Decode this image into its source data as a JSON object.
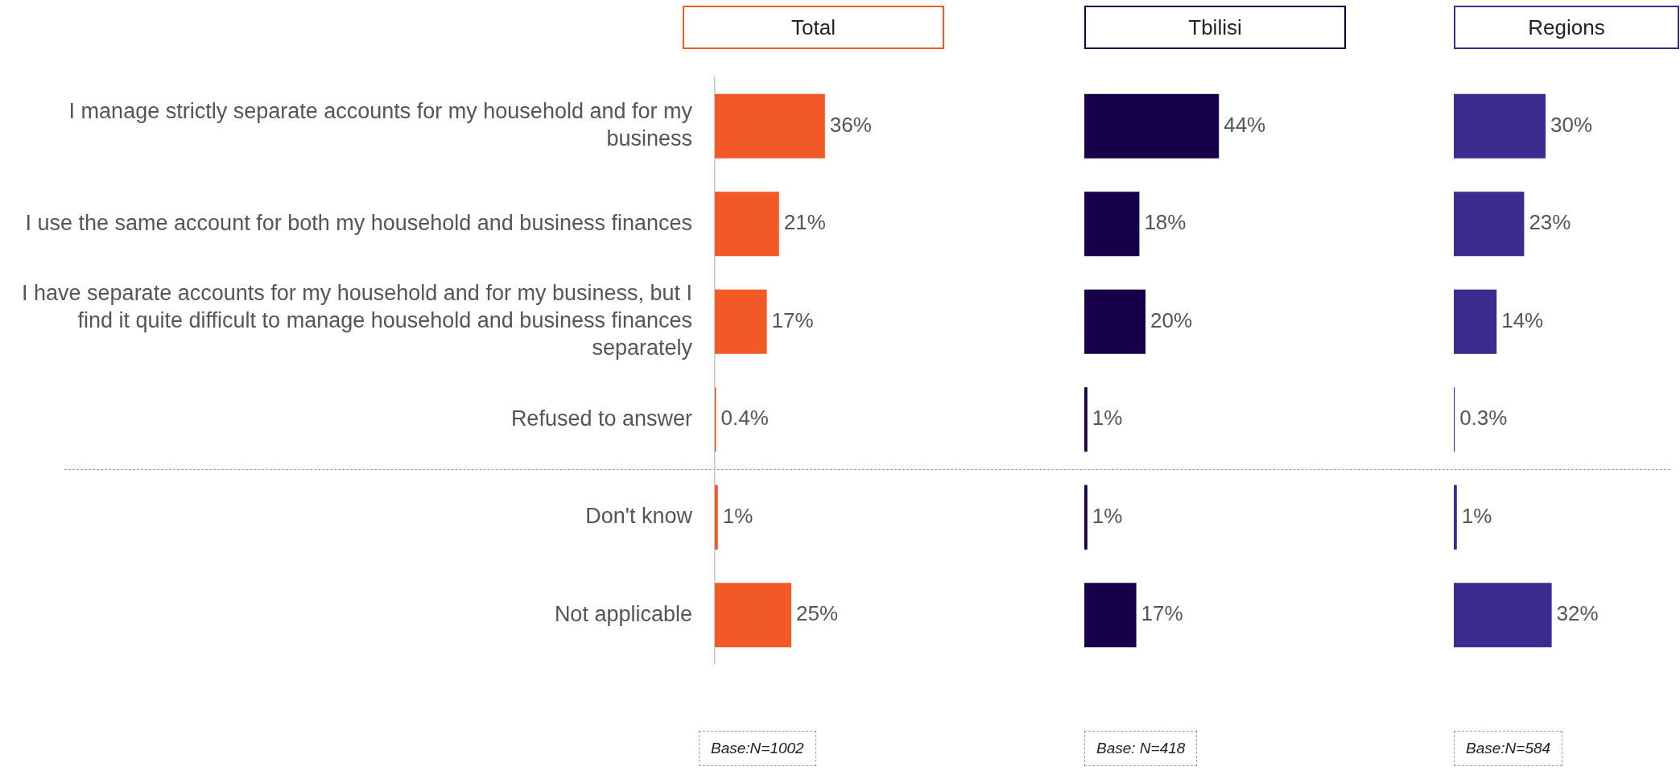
{
  "chart_data": [
    {
      "type": "bar",
      "orientation": "horizontal",
      "title": "Total",
      "categories": [
        "I manage strictly separate accounts for my household and for my business",
        "I use the same account for both my household and business finances",
        "I have separate accounts for my household and for my business, but I find it quite difficult to manage household and business finances separately",
        "Refused to answer",
        "Don't know",
        "Not applicable"
      ],
      "values": [
        36,
        21,
        17,
        0.4,
        1,
        25
      ],
      "value_labels": [
        "36%",
        "21%",
        "17%",
        "0.4%",
        "1%",
        "25%"
      ],
      "color": "#f15a27",
      "tick_labels": "y",
      "annotations": [
        "Base:N=1002"
      ]
    },
    {
      "type": "bar",
      "orientation": "horizontal",
      "title": "Tbilisi",
      "categories": [
        null,
        null,
        null,
        null,
        null,
        null
      ],
      "values": [
        44,
        18,
        20,
        1,
        1,
        17
      ],
      "value_labels": [
        "44%",
        "18%",
        "20%",
        "1%",
        "1%",
        "17%"
      ],
      "color": "#170049",
      "tick_labels": false,
      "annotations": [
        "Base: N=418"
      ]
    },
    {
      "type": "bar",
      "orientation": "horizontal",
      "title": "Regions",
      "categories": [
        null,
        null,
        null,
        null,
        null,
        null
      ],
      "values": [
        30,
        23,
        14,
        0.3,
        1,
        32
      ],
      "value_labels": [
        "30%",
        "23%",
        "14%",
        "0.3%",
        "1%",
        "32%"
      ],
      "color": "#3a2d8f",
      "tick_labels": false,
      "annotations": [
        "Base:N=584"
      ]
    }
  ]
}
